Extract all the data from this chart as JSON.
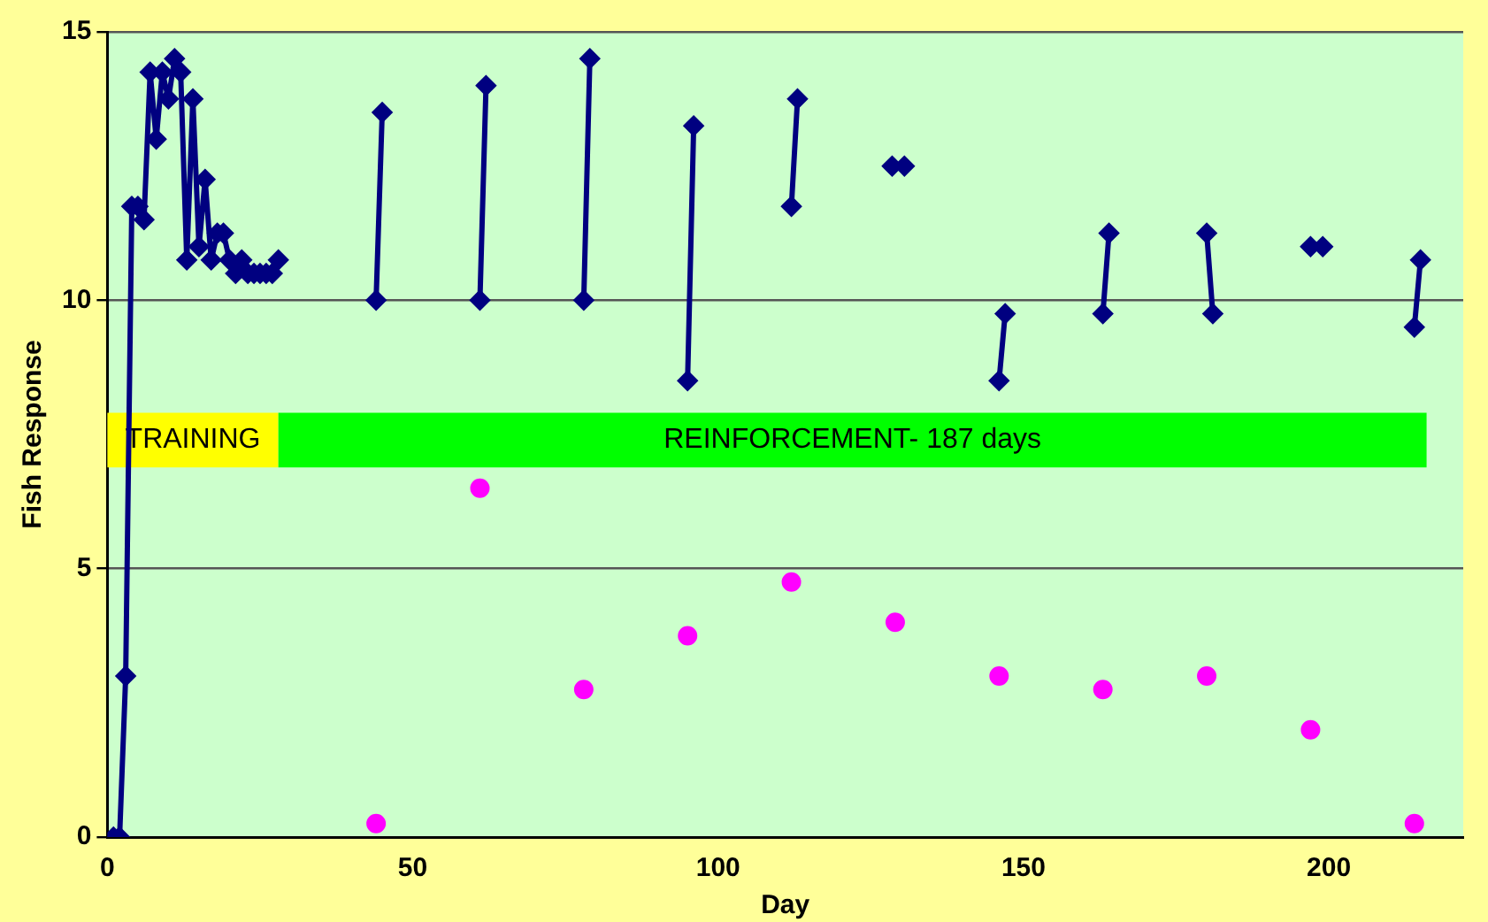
{
  "chart_data": {
    "type": "line",
    "xlabel": "Day",
    "ylabel": "Fish Response",
    "xlim": [
      0,
      222
    ],
    "xticks": [
      0,
      50,
      100,
      150,
      200
    ],
    "ylim": [
      0,
      15
    ],
    "yticks": [
      0,
      5,
      10,
      15
    ],
    "grid": "y",
    "legend": false,
    "series": [
      {
        "color": "#000080",
        "marker": "diamond",
        "line_style": "solid",
        "x": [
          1,
          2,
          3,
          4,
          5,
          6,
          7,
          8,
          9,
          10,
          11,
          12,
          13,
          14,
          15,
          16,
          17,
          18,
          19,
          20,
          21,
          22,
          23,
          24,
          25,
          26,
          27,
          28,
          36,
          44,
          45,
          53,
          61,
          62,
          70,
          78,
          79,
          87,
          95,
          96,
          104,
          112,
          113,
          121,
          128.5,
          130.5,
          138,
          146,
          147,
          155,
          163,
          164,
          172,
          180,
          181,
          189,
          197,
          199,
          206,
          214,
          215
        ],
        "values": [
          0,
          0,
          3,
          11.75,
          11.75,
          11.5,
          14.25,
          13,
          14.25,
          13.75,
          14.5,
          14.25,
          10.75,
          13.75,
          11,
          12.25,
          10.75,
          11.25,
          11.25,
          10.75,
          10.5,
          10.75,
          10.5,
          10.5,
          10.5,
          10.5,
          10.5,
          10.75,
          null,
          10,
          13.5,
          null,
          10,
          14,
          null,
          10,
          14.5,
          null,
          8.5,
          13.25,
          null,
          11.75,
          13.75,
          null,
          12.5,
          12.5,
          null,
          8.5,
          9.75,
          null,
          9.75,
          11.25,
          null,
          11.25,
          9.75,
          null,
          11,
          11,
          null,
          9.5,
          10.75
        ]
      },
      {
        "type": "scatter",
        "color": "#ff00ff",
        "marker": "circle",
        "x": [
          44,
          61,
          78,
          95,
          112,
          129,
          146,
          163,
          180,
          197,
          214
        ],
        "values": [
          0.25,
          6.5,
          2.75,
          3.75,
          4.75,
          4,
          3,
          2.75,
          3,
          2,
          0.25
        ]
      }
    ],
    "bands": [
      {
        "axis": "x",
        "from": 0,
        "to": 28,
        "label": "TRAINING",
        "color": "#ffff00"
      },
      {
        "axis": "x",
        "from": 28,
        "to": 216,
        "label": "REINFORCEMENT- 187 days",
        "color": "#00ff00"
      }
    ]
  }
}
